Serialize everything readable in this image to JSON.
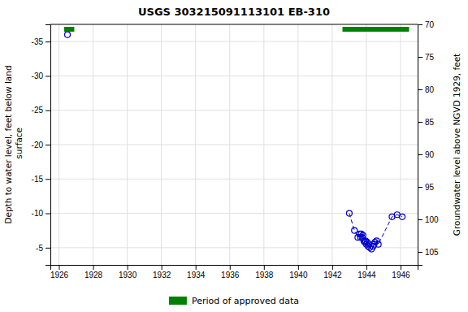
{
  "chart_data": {
    "type": "scatter",
    "title": "USGS 303215091113101 EB-310",
    "ylabel": "Depth to water level, feet below land\n surface",
    "y2label": "Groundwater level above NGVD 1929, feet",
    "xlim": [
      1925.5,
      1947.0
    ],
    "ylim": [
      -2.5,
      -37.5
    ],
    "y2lim": [
      107,
      70
    ],
    "xticks": [
      1926,
      1928,
      1930,
      1932,
      1934,
      1936,
      1938,
      1940,
      1942,
      1944,
      1946
    ],
    "yticks": [
      -35,
      -30,
      -25,
      -20,
      -15,
      -10,
      -5
    ],
    "y2ticks": [
      70,
      75,
      80,
      85,
      90,
      95,
      100,
      105
    ],
    "grid": true,
    "legend": "bottom",
    "series": [
      {
        "type": "line",
        "line_style": "dashed",
        "color": "#0000cc",
        "x": [
          1943.0,
          1943.3,
          1943.5,
          1943.6,
          1943.65,
          1943.7,
          1943.75,
          1943.8,
          1943.85,
          1943.9,
          1943.95,
          1944.0,
          1944.05,
          1944.1,
          1944.15,
          1944.2,
          1944.3,
          1944.4,
          1944.45,
          1944.5,
          1944.6,
          1944.7,
          1945.5,
          1945.8,
          1946.1
        ],
        "values": [
          -10.0,
          -7.5,
          -6.5,
          -7.0,
          -6.5,
          -7.0,
          -6.5,
          -6.8,
          -6.0,
          -5.8,
          -6.0,
          -5.5,
          -5.8,
          -5.2,
          -5.5,
          -5.0,
          -4.8,
          -5.2,
          -5.5,
          -5.8,
          -6.0,
          -5.5,
          -9.5,
          -9.8,
          -9.5
        ]
      },
      {
        "type": "scatter",
        "marker": "open_circle",
        "color": "#0000cc",
        "x": [
          1926.5,
          1943.0,
          1943.3,
          1943.5,
          1943.6,
          1943.65,
          1943.7,
          1943.75,
          1943.8,
          1943.85,
          1943.9,
          1943.95,
          1944.0,
          1944.05,
          1944.1,
          1944.15,
          1944.2,
          1944.3,
          1944.4,
          1944.45,
          1944.5,
          1944.6,
          1944.7,
          1945.5,
          1945.8,
          1946.1
        ],
        "values": [
          -36.0,
          -10.0,
          -7.5,
          -6.5,
          -7.0,
          -6.5,
          -7.0,
          -6.5,
          -6.8,
          -6.0,
          -5.8,
          -6.0,
          -5.5,
          -5.8,
          -5.2,
          -5.5,
          -5.0,
          -4.8,
          -5.2,
          -5.5,
          -5.8,
          -6.0,
          -5.5,
          -9.5,
          -9.8,
          -9.5
        ]
      },
      {
        "type": "span",
        "name": "Period of approved data",
        "color": "#008000",
        "starts": [
          1926.3,
          1942.6
        ],
        "ends": [
          1926.9,
          1946.5
        ]
      }
    ]
  }
}
